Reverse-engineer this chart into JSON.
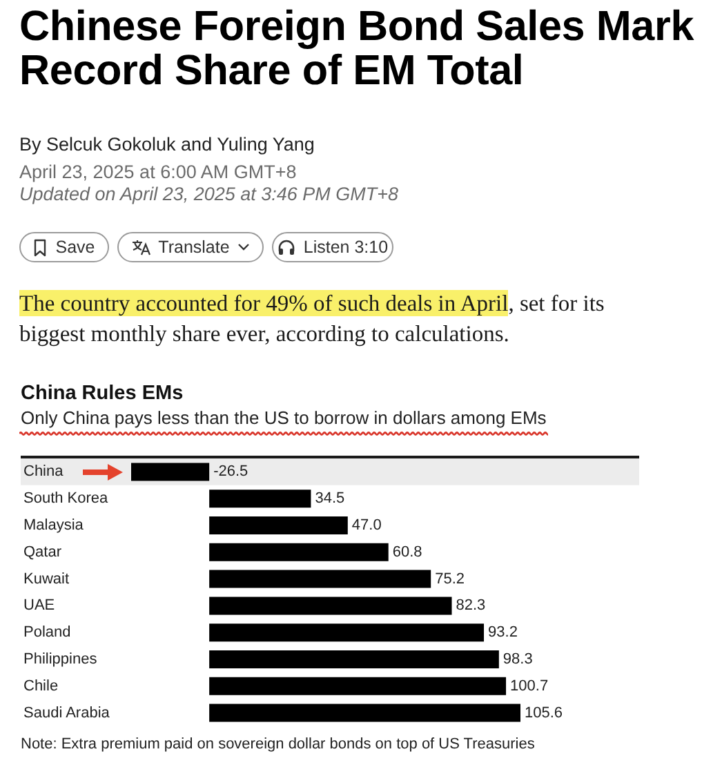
{
  "chart_data": {
    "type": "bar",
    "orientation": "horizontal",
    "title": "China Rules EMs",
    "subtitle": "Only China pays less than the US to borrow in dollars among EMs",
    "categories": [
      "China",
      "South Korea",
      "Malaysia",
      "Qatar",
      "Kuwait",
      "UAE",
      "Poland",
      "Philippines",
      "Chile",
      "Saudi Arabia"
    ],
    "values": [
      -26.5,
      34.5,
      47.0,
      60.8,
      75.2,
      82.3,
      93.2,
      98.3,
      100.7,
      105.6
    ],
    "value_labels": [
      "-26.5",
      "34.5",
      "47.0",
      "60.8",
      "75.2",
      "82.3",
      "93.2",
      "98.3",
      "100.7",
      "105.6"
    ],
    "color": "#000000",
    "tick_labels": "y",
    "bands": [
      {
        "axis": "y",
        "from": "China",
        "to": "China",
        "color": "#ececec"
      }
    ],
    "annotations": [
      "Chinese Foreign Bond Sales Mark Record Share of EM Total",
      "By Selcuk Gokoluk and Yuling Yang",
      "April 23, 2025 at 6:00 AM GMT+8",
      "Updated on April 23, 2025 at 3:46 PM GMT+8",
      "Save",
      "Translate",
      "Listen 3:10",
      "The country accounted for 49% of such deals in April",
      ", set for its",
      "biggest monthly share ever, according to calculations.",
      "Note: Extra premium paid on sovereign dollar bonds on top of US Treasuries"
    ]
  }
}
